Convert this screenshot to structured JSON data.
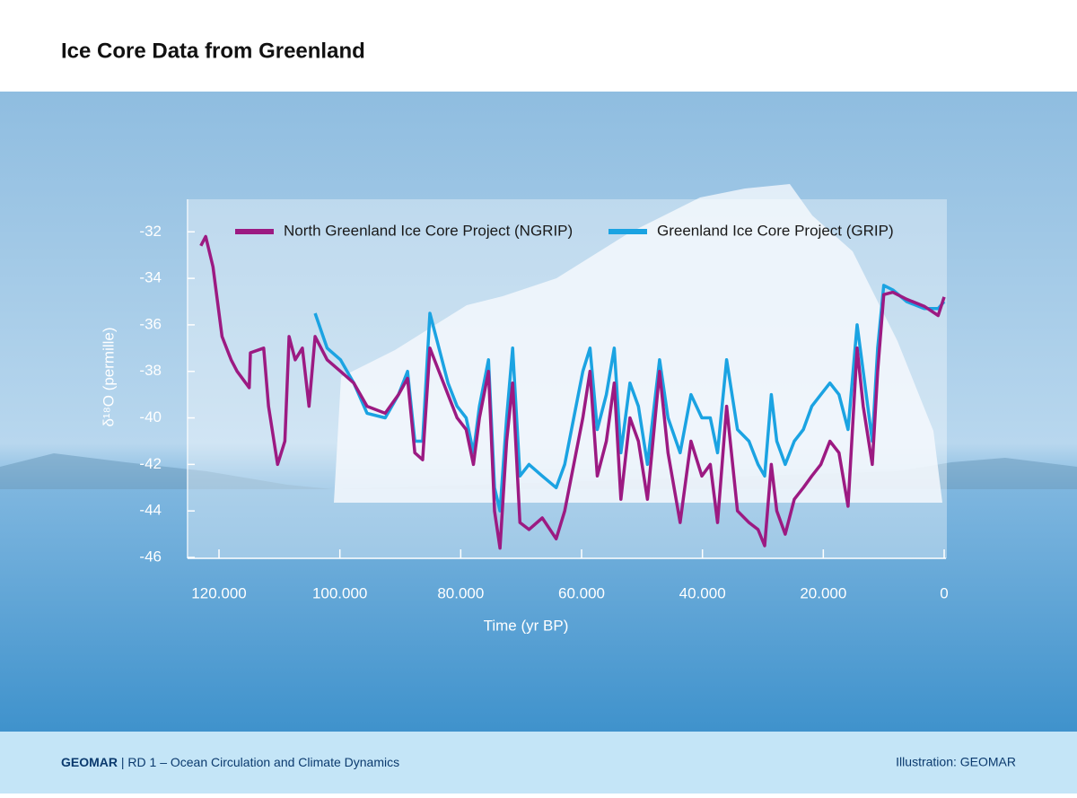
{
  "chart_data": {
    "type": "line",
    "title": "Ice Core Data from Greenland",
    "xlabel": "Time (yr BP)",
    "ylabel": "δ¹⁸O (permille)",
    "xlim": [
      125200,
      0
    ],
    "ylim": [
      -46,
      -30.6
    ],
    "xticks": [
      {
        "value": 120000,
        "label": "120.000"
      },
      {
        "value": 100000,
        "label": "100.000"
      },
      {
        "value": 80000,
        "label": "80.000"
      },
      {
        "value": 60000,
        "label": "60.000"
      },
      {
        "value": 40000,
        "label": "40.000"
      },
      {
        "value": 20000,
        "label": "20.000"
      },
      0
    ],
    "yticks": [
      -32,
      -34,
      -36,
      -38,
      -40,
      -42,
      -44,
      -46
    ],
    "legend": "top",
    "x": [
      123000,
      122200,
      121000,
      119500,
      118000,
      117000,
      115000,
      114800,
      112600,
      111800,
      110300,
      109100,
      108400,
      107400,
      106200,
      105100,
      104100,
      102100,
      99900,
      97700,
      95500,
      92500,
      90300,
      88800,
      87600,
      86300,
      85100,
      83600,
      82100,
      80600,
      79100,
      77900,
      76900,
      75400,
      74400,
      73500,
      72400,
      71400,
      70200,
      68700,
      66500,
      64200,
      62800,
      61300,
      59800,
      58600,
      57400,
      55900,
      54600,
      53500,
      52000,
      50600,
      49100,
      47100,
      45700,
      43700,
      41900,
      40100,
      38700,
      37500,
      36000,
      34200,
      32300,
      30800,
      29700,
      28600,
      27700,
      26300,
      24800,
      23300,
      21900,
      20400,
      18900,
      17400,
      15900,
      14400,
      13400,
      11900,
      11000,
      10000,
      8500,
      6200,
      3300,
      1000,
      0
    ],
    "series": [
      {
        "name": "North Greenland Ice Core Project (NGRIP)",
        "color": "#9c1a82",
        "values": [
          -32.6,
          -32.2,
          -33.5,
          -36.5,
          -37.5,
          -38.0,
          -38.7,
          -37.2,
          -37.0,
          -39.5,
          -42,
          -41,
          -36.5,
          -37.5,
          -37,
          -39.5,
          -36.5,
          -37.5,
          -38,
          -38.5,
          -39.5,
          -39.8,
          -39,
          -38.3,
          -41.5,
          -41.8,
          -37,
          -38,
          -39,
          -40,
          -40.5,
          -42,
          -40,
          -38,
          -44,
          -45.6,
          -41,
          -38.5,
          -44.5,
          -44.8,
          -44.3,
          -45.2,
          -44,
          -42,
          -40,
          -38,
          -42.5,
          -41,
          -38.5,
          -43.5,
          -40,
          -41,
          -43.5,
          -38,
          -41.5,
          -44.5,
          -41,
          -42.5,
          -42,
          -44.5,
          -39.5,
          -44,
          -44.5,
          -44.8,
          -45.5,
          -42,
          -44,
          -45,
          -43.5,
          -43,
          -42.5,
          -42,
          -41,
          -41.5,
          -43.8,
          -37,
          -39.5,
          -42,
          -38,
          -34.7,
          -34.6,
          -34.9,
          -35.2,
          -35.6,
          -34.8
        ]
      },
      {
        "name": "Greenland Ice Core Project (GRIP)",
        "color": "#1ba3e2",
        "values": [
          null,
          null,
          null,
          null,
          null,
          null,
          null,
          null,
          null,
          null,
          null,
          null,
          null,
          null,
          null,
          null,
          -35.5,
          -37,
          -37.5,
          -38.5,
          -39.8,
          -40,
          -39,
          -38,
          -41,
          -41,
          -35.5,
          -37,
          -38.5,
          -39.5,
          -40,
          -41.5,
          -39.5,
          -37.5,
          -43,
          -44,
          -40,
          -37,
          -42.5,
          -42,
          -42.5,
          -43,
          -42,
          -40,
          -38,
          -37,
          -40.5,
          -39,
          -37,
          -41.5,
          -38.5,
          -39.5,
          -42,
          -37.5,
          -40,
          -41.5,
          -39,
          -40,
          -40,
          -41.5,
          -37.5,
          -40.5,
          -41,
          -42,
          -42.5,
          -39,
          -41,
          -42,
          -41,
          -40.5,
          -39.5,
          -39,
          -38.5,
          -39,
          -40.5,
          -36,
          -38,
          -41,
          -37,
          -34.3,
          -34.5,
          -35,
          -35.3,
          -35.3,
          -35
        ]
      }
    ]
  },
  "footer": {
    "org": "GEOMAR",
    "division": "| RD 1 – Ocean Circulation and Climate Dynamics",
    "credit": "Illustration: GEOMAR"
  }
}
